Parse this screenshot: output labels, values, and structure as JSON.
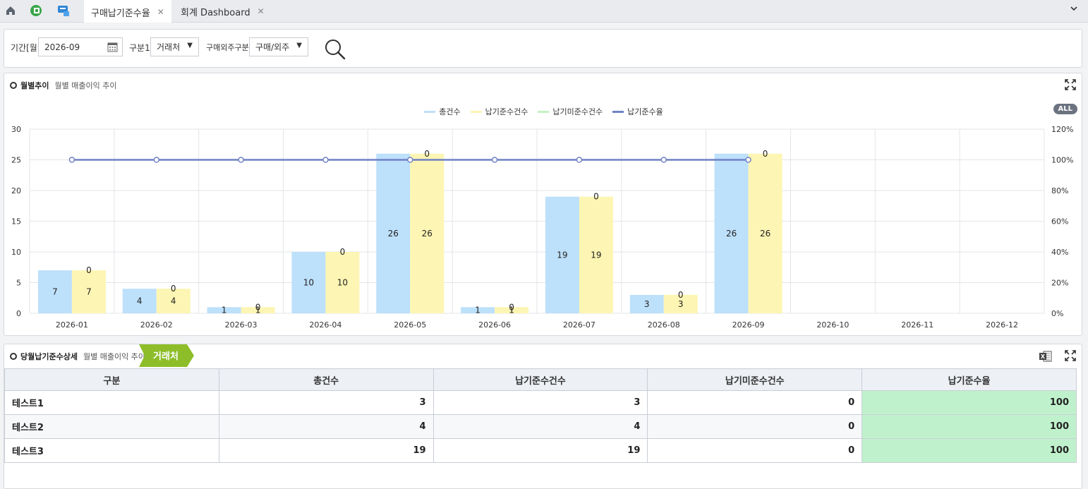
{
  "tabs": [
    {
      "label": "구매납기준수율",
      "active": true
    },
    {
      "label": "회계 Dashboard",
      "active": false
    }
  ],
  "filter": {
    "period_label": "기간[월]",
    "period_value": "2026-09",
    "type_label": "구분1",
    "type_value": "거래처",
    "purchase_label": "구매외주구분",
    "purchase_value": "구매/외주"
  },
  "chart_panel": {
    "title": "월별추이",
    "subtitle": "월별 매출이익 추이",
    "all_button": "ALL"
  },
  "chart_data": {
    "type": "bar",
    "categories": [
      "2026-01",
      "2026-02",
      "2026-03",
      "2026-04",
      "2026-05",
      "2026-06",
      "2026-07",
      "2026-08",
      "2026-09",
      "2026-10",
      "2026-11",
      "2026-12"
    ],
    "series": [
      {
        "name": "총건수",
        "type": "bar",
        "axis": "left",
        "color": "#bde0fb",
        "values": [
          7,
          4,
          1,
          10,
          26,
          1,
          19,
          3,
          26,
          null,
          null,
          null
        ]
      },
      {
        "name": "납기준수건수",
        "type": "bar",
        "axis": "left",
        "color": "#fdf5b3",
        "values": [
          7,
          4,
          1,
          10,
          26,
          1,
          19,
          3,
          26,
          null,
          null,
          null
        ]
      },
      {
        "name": "납기미준수건수",
        "type": "bar",
        "axis": "left",
        "color": "#c6f0c4",
        "values": [
          0,
          0,
          0,
          0,
          0,
          0,
          0,
          0,
          0,
          null,
          null,
          null
        ]
      },
      {
        "name": "납기준수율",
        "type": "line",
        "axis": "right",
        "color": "#6f82c4",
        "values": [
          100,
          100,
          100,
          100,
          100,
          100,
          100,
          100,
          100,
          null,
          null,
          null
        ]
      }
    ],
    "left_axis": {
      "min": 0,
      "max": 30,
      "ticks": [
        0,
        5,
        10,
        15,
        20,
        25,
        30
      ]
    },
    "right_axis": {
      "min": 0,
      "max": 120,
      "ticks": [
        "0%",
        "20%",
        "40%",
        "60%",
        "80%",
        "100%",
        "120%"
      ]
    },
    "legend_position": "top-center",
    "grid": true
  },
  "detail_panel": {
    "title": "당월납기준수상세",
    "subtitle": "월별 매출이익 추이",
    "tag": "거래처",
    "columns": [
      "구분",
      "총건수",
      "납기준수건수",
      "납기미준수건수",
      "납기준수율"
    ],
    "rows": [
      {
        "name": "테스트1",
        "total": "3",
        "on_time": "3",
        "late": "0",
        "rate": "100"
      },
      {
        "name": "테스트2",
        "total": "4",
        "on_time": "4",
        "late": "0",
        "rate": "100"
      },
      {
        "name": "테스트3",
        "total": "19",
        "on_time": "19",
        "late": "0",
        "rate": "100"
      }
    ]
  }
}
